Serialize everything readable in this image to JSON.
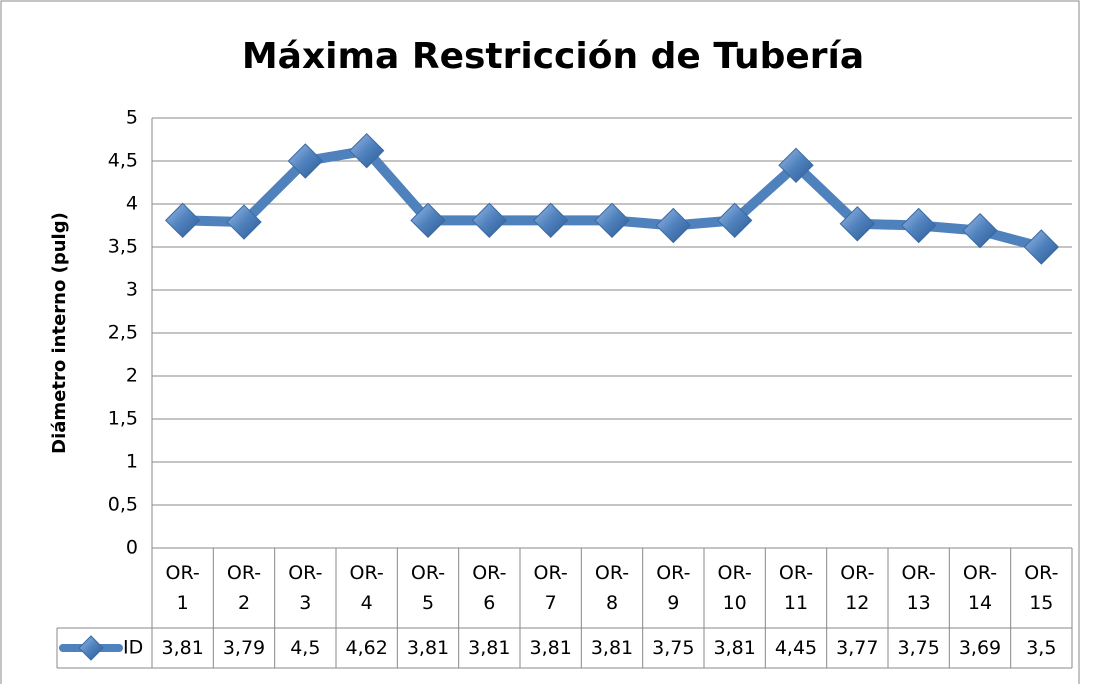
{
  "chart_data": {
    "type": "line",
    "title": "Máxima Restricción de Tubería",
    "y_label": "Diámetro interno (pulg)",
    "categories": [
      "OR-1",
      "OR-2",
      "OR-3",
      "OR-4",
      "OR-5",
      "OR-6",
      "OR-7",
      "OR-8",
      "OR-9",
      "OR-10",
      "OR-11",
      "OR-12",
      "OR-13",
      "OR-14",
      "OR-15"
    ],
    "series": [
      {
        "name": "ID",
        "color": "#4f81bd",
        "values": [
          3.81,
          3.79,
          4.5,
          4.62,
          3.81,
          3.81,
          3.81,
          3.81,
          3.75,
          3.81,
          4.45,
          3.77,
          3.75,
          3.69,
          3.5
        ],
        "value_labels": [
          "3,81",
          "3,79",
          "4,5",
          "4,62",
          "3,81",
          "3,81",
          "3,81",
          "3,81",
          "3,75",
          "3,81",
          "4,45",
          "3,77",
          "3,75",
          "3,69",
          "3,5"
        ]
      }
    ],
    "ylim": [
      0,
      5
    ],
    "yticks": [
      0,
      {
        "value": 0.5,
        "label": "0,5"
      },
      1,
      {
        "value": 1.5,
        "label": "1,5"
      },
      2,
      {
        "value": 2.5,
        "label": "2,5"
      },
      3,
      {
        "value": 3.5,
        "label": "3,5"
      },
      4,
      {
        "value": 4.5,
        "label": "4,5"
      },
      5
    ],
    "grid": true,
    "data_table": true
  }
}
